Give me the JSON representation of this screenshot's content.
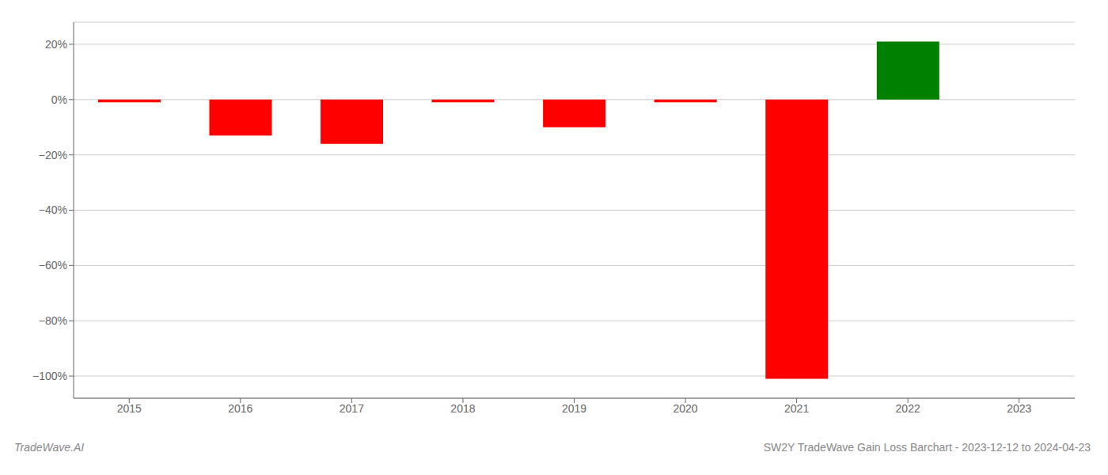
{
  "chart_data": {
    "type": "bar",
    "categories": [
      "2015",
      "2016",
      "2017",
      "2018",
      "2019",
      "2020",
      "2021",
      "2022",
      "2023"
    ],
    "values": [
      -1.0,
      -13.0,
      -16.0,
      -1.0,
      -10.0,
      -1.0,
      -101.0,
      21.0,
      0.0
    ],
    "colors": [
      "#ff0000",
      "#ff0000",
      "#ff0000",
      "#ff0000",
      "#ff0000",
      "#ff0000",
      "#ff0000",
      "#008000",
      "#ffffff"
    ],
    "ylim": [
      -108,
      28
    ],
    "yticks": [
      {
        "value": -100,
        "label": "−100%"
      },
      {
        "value": -80,
        "label": "−80%"
      },
      {
        "value": -60,
        "label": "−60%"
      },
      {
        "value": -40,
        "label": "−40%"
      },
      {
        "value": -20,
        "label": "−20%"
      },
      {
        "value": 0,
        "label": "0%"
      },
      {
        "value": 20,
        "label": "20%"
      }
    ],
    "grid": true,
    "annotations": [
      "TradeWave.AI",
      "SW2Y TradeWave Gain Loss Barchart - 2023-12-12 to 2024-04-23"
    ]
  }
}
